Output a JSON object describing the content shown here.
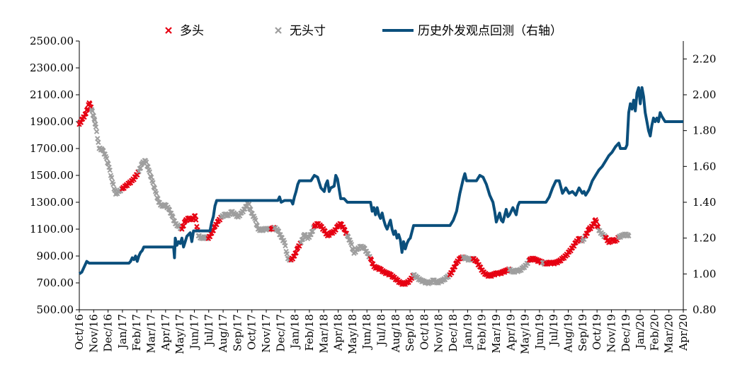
{
  "chart_data": {
    "type": "scatter+line",
    "colors": {
      "duotou": "#e60012",
      "wutoucun": "#9e9e9e",
      "line": "#0b4f7c"
    },
    "legend": [
      {
        "key": "duotou",
        "label": "多头",
        "marker": "x"
      },
      {
        "key": "wutoucun",
        "label": "无头寸",
        "marker": "x"
      },
      {
        "key": "line",
        "label": "历史外发观点回测（右轴）",
        "marker": "line"
      }
    ],
    "y_left": {
      "min": 500,
      "max": 2500,
      "ticks": [
        "500.00",
        "700.00",
        "900.00",
        "1100.00",
        "1300.00",
        "1500.00",
        "1700.00",
        "1900.00",
        "2100.00",
        "2300.00",
        "2500.00"
      ]
    },
    "y_right": {
      "min": 0.8,
      "max": 2.3,
      "ticks": [
        "0.80",
        "1.00",
        "1.20",
        "1.40",
        "1.60",
        "1.80",
        "2.00",
        "2.20"
      ]
    },
    "x_ticks": [
      "Oct/16",
      "Nov/16",
      "Dec/16",
      "Jan/17",
      "Feb/17",
      "Mar/17",
      "Apr/17",
      "May/17",
      "Jun/17",
      "Jul/17",
      "Aug/17",
      "Sep/17",
      "Oct/17",
      "Nov/17",
      "Dec/17",
      "Jan/18",
      "Feb/18",
      "Mar/18",
      "Apr/18",
      "May/18",
      "Jun/18",
      "Jul/18",
      "Aug/18",
      "Sep/18",
      "Oct/18",
      "Nov/18",
      "Dec/18",
      "Jan/19",
      "Feb/19",
      "Mar/19",
      "Apr/19",
      "May/19",
      "Jun/19",
      "Jul/19",
      "Aug/19",
      "Sep/19",
      "Oct/19",
      "Nov/19",
      "Dec/19",
      "Jan/20",
      "Feb/20",
      "Mar/20",
      "Apr/20"
    ],
    "price_series": [
      [
        0,
        1880,
        "d"
      ],
      [
        0.2,
        1920,
        "d"
      ],
      [
        0.4,
        1960,
        "d"
      ],
      [
        0.6,
        2040,
        "d"
      ],
      [
        0.75,
        1990,
        "w"
      ],
      [
        0.9,
        1920,
        "w"
      ],
      [
        1.0,
        1860,
        "w"
      ],
      [
        1.2,
        1700,
        "w"
      ],
      [
        1.4,
        1690,
        "w"
      ],
      [
        1.6,
        1640,
        "w"
      ],
      [
        1.8,
        1560,
        "w"
      ],
      [
        2.0,
        1450,
        "w"
      ],
      [
        2.2,
        1360,
        "w"
      ],
      [
        2.4,
        1380,
        "w"
      ],
      [
        2.6,
        1400,
        "d"
      ],
      [
        2.8,
        1420,
        "d"
      ],
      [
        3.0,
        1440,
        "d"
      ],
      [
        3.2,
        1460,
        "d"
      ],
      [
        3.4,
        1490,
        "d"
      ],
      [
        3.6,
        1530,
        "w"
      ],
      [
        3.8,
        1590,
        "w"
      ],
      [
        4.0,
        1610,
        "w"
      ],
      [
        4.2,
        1540,
        "w"
      ],
      [
        4.4,
        1460,
        "w"
      ],
      [
        4.6,
        1380,
        "w"
      ],
      [
        4.8,
        1300,
        "w"
      ],
      [
        5.0,
        1270,
        "w"
      ],
      [
        5.2,
        1280,
        "w"
      ],
      [
        5.4,
        1250,
        "w"
      ],
      [
        5.6,
        1200,
        "w"
      ],
      [
        5.8,
        1140,
        "w"
      ],
      [
        6.0,
        1120,
        "w"
      ],
      [
        6.2,
        1100,
        "d"
      ],
      [
        6.4,
        1160,
        "d"
      ],
      [
        6.6,
        1180,
        "d"
      ],
      [
        6.8,
        1170,
        "d"
      ],
      [
        7.0,
        1200,
        "d"
      ],
      [
        7.2,
        1050,
        "w"
      ],
      [
        7.4,
        1030,
        "w"
      ],
      [
        7.6,
        1040,
        "w"
      ],
      [
        7.8,
        1030,
        "d"
      ],
      [
        8.0,
        1070,
        "d"
      ],
      [
        8.2,
        1120,
        "d"
      ],
      [
        8.4,
        1160,
        "d"
      ],
      [
        8.6,
        1190,
        "w"
      ],
      [
        8.8,
        1210,
        "w"
      ],
      [
        9.0,
        1200,
        "w"
      ],
      [
        9.2,
        1230,
        "w"
      ],
      [
        9.4,
        1210,
        "w"
      ],
      [
        9.6,
        1190,
        "w"
      ],
      [
        9.8,
        1220,
        "w"
      ],
      [
        10.0,
        1250,
        "w"
      ],
      [
        10.2,
        1300,
        "w"
      ],
      [
        10.4,
        1220,
        "w"
      ],
      [
        10.6,
        1180,
        "w"
      ],
      [
        10.8,
        1100,
        "w"
      ],
      [
        11.0,
        1090,
        "w"
      ],
      [
        11.2,
        1100,
        "w"
      ],
      [
        11.4,
        1100,
        "w"
      ],
      [
        11.6,
        1100,
        "d"
      ],
      [
        11.8,
        1110,
        "w"
      ],
      [
        12.0,
        1090,
        "w"
      ],
      [
        12.2,
        1040,
        "w"
      ],
      [
        12.4,
        1000,
        "w"
      ],
      [
        12.6,
        880,
        "w"
      ],
      [
        12.8,
        870,
        "d"
      ],
      [
        13.0,
        900,
        "d"
      ],
      [
        13.2,
        960,
        "d"
      ],
      [
        13.4,
        1000,
        "w"
      ],
      [
        13.6,
        1060,
        "w"
      ],
      [
        13.8,
        1030,
        "w"
      ],
      [
        14.0,
        1060,
        "w"
      ],
      [
        14.2,
        1120,
        "d"
      ],
      [
        14.4,
        1140,
        "d"
      ],
      [
        14.6,
        1120,
        "d"
      ],
      [
        14.8,
        1090,
        "d"
      ],
      [
        15.0,
        1050,
        "d"
      ],
      [
        15.2,
        1070,
        "d"
      ],
      [
        15.4,
        1080,
        "d"
      ],
      [
        15.6,
        1120,
        "d"
      ],
      [
        15.8,
        1140,
        "d"
      ],
      [
        16.0,
        1100,
        "d"
      ],
      [
        16.2,
        1050,
        "w"
      ],
      [
        16.4,
        1000,
        "w"
      ],
      [
        16.6,
        920,
        "w"
      ],
      [
        16.8,
        950,
        "w"
      ],
      [
        17.0,
        970,
        "w"
      ],
      [
        17.2,
        960,
        "w"
      ],
      [
        17.4,
        920,
        "w"
      ],
      [
        17.6,
        880,
        "d"
      ],
      [
        17.8,
        820,
        "d"
      ],
      [
        18.0,
        810,
        "d"
      ],
      [
        18.2,
        800,
        "d"
      ],
      [
        18.4,
        780,
        "d"
      ],
      [
        18.6,
        770,
        "d"
      ],
      [
        18.8,
        760,
        "d"
      ],
      [
        19.0,
        740,
        "d"
      ],
      [
        19.2,
        720,
        "d"
      ],
      [
        19.4,
        700,
        "d"
      ],
      [
        19.6,
        690,
        "d"
      ],
      [
        19.8,
        700,
        "d"
      ],
      [
        20.0,
        720,
        "d"
      ],
      [
        20.2,
        760,
        "w"
      ],
      [
        20.4,
        740,
        "w"
      ],
      [
        20.6,
        720,
        "w"
      ],
      [
        20.8,
        710,
        "w"
      ],
      [
        21.0,
        700,
        "w"
      ],
      [
        21.2,
        700,
        "w"
      ],
      [
        21.4,
        720,
        "w"
      ],
      [
        21.6,
        700,
        "w"
      ],
      [
        21.8,
        710,
        "w"
      ],
      [
        22.0,
        720,
        "w"
      ],
      [
        22.2,
        740,
        "w"
      ],
      [
        22.4,
        760,
        "d"
      ],
      [
        22.6,
        800,
        "d"
      ],
      [
        22.8,
        850,
        "d"
      ],
      [
        23.0,
        880,
        "d"
      ],
      [
        23.2,
        890,
        "w"
      ],
      [
        23.4,
        880,
        "w"
      ],
      [
        23.6,
        870,
        "w"
      ],
      [
        23.8,
        880,
        "d"
      ],
      [
        24.0,
        860,
        "d"
      ],
      [
        24.2,
        820,
        "d"
      ],
      [
        24.4,
        780,
        "d"
      ],
      [
        24.6,
        760,
        "d"
      ],
      [
        24.8,
        750,
        "d"
      ],
      [
        25.0,
        760,
        "d"
      ],
      [
        25.2,
        770,
        "d"
      ],
      [
        25.4,
        770,
        "d"
      ],
      [
        25.6,
        780,
        "d"
      ],
      [
        25.8,
        790,
        "d"
      ],
      [
        26.0,
        800,
        "w"
      ],
      [
        26.2,
        780,
        "w"
      ],
      [
        26.4,
        790,
        "w"
      ],
      [
        26.6,
        790,
        "w"
      ],
      [
        26.8,
        810,
        "w"
      ],
      [
        27.0,
        830,
        "w"
      ],
      [
        27.2,
        870,
        "d"
      ],
      [
        27.4,
        880,
        "d"
      ],
      [
        27.6,
        870,
        "d"
      ],
      [
        27.8,
        860,
        "d"
      ],
      [
        28.0,
        850,
        "w"
      ],
      [
        28.2,
        840,
        "d"
      ],
      [
        28.4,
        850,
        "d"
      ],
      [
        28.6,
        845,
        "d"
      ],
      [
        28.8,
        850,
        "d"
      ],
      [
        29.0,
        860,
        "d"
      ],
      [
        29.2,
        880,
        "d"
      ],
      [
        29.4,
        900,
        "d"
      ],
      [
        29.6,
        930,
        "d"
      ],
      [
        29.8,
        960,
        "d"
      ],
      [
        30.0,
        1000,
        "d"
      ],
      [
        30.2,
        1030,
        "d"
      ],
      [
        30.4,
        1010,
        "w"
      ],
      [
        30.6,
        1050,
        "d"
      ],
      [
        30.8,
        1100,
        "d"
      ],
      [
        31.0,
        1120,
        "d"
      ],
      [
        31.2,
        1170,
        "d"
      ],
      [
        31.4,
        1090,
        "w"
      ],
      [
        31.6,
        1060,
        "w"
      ],
      [
        31.8,
        1040,
        "d"
      ],
      [
        32.0,
        1000,
        "d"
      ],
      [
        32.2,
        1020,
        "d"
      ],
      [
        32.4,
        1010,
        "d"
      ],
      [
        32.6,
        1040,
        "w"
      ],
      [
        32.8,
        1050,
        "w"
      ],
      [
        33.0,
        1060,
        "w"
      ],
      [
        33.2,
        1050,
        "w"
      ]
    ],
    "line_series": [
      [
        0,
        1.0
      ],
      [
        0.15,
        1.01
      ],
      [
        0.3,
        1.04
      ],
      [
        0.45,
        1.07
      ],
      [
        0.6,
        1.06
      ],
      [
        3.0,
        1.06
      ],
      [
        3.1,
        1.07
      ],
      [
        3.2,
        1.09
      ],
      [
        3.3,
        1.08
      ],
      [
        3.4,
        1.1
      ],
      [
        3.5,
        1.07
      ],
      [
        3.6,
        1.1
      ],
      [
        3.7,
        1.12
      ],
      [
        3.8,
        1.13
      ],
      [
        3.9,
        1.15
      ],
      [
        4.0,
        1.15
      ],
      [
        5.7,
        1.15
      ],
      [
        5.75,
        1.09
      ],
      [
        5.8,
        1.2
      ],
      [
        5.9,
        1.16
      ],
      [
        6.0,
        1.18
      ],
      [
        6.1,
        1.17
      ],
      [
        6.2,
        1.2
      ],
      [
        6.3,
        1.15
      ],
      [
        6.4,
        1.18
      ],
      [
        6.5,
        1.21
      ],
      [
        6.7,
        1.23
      ],
      [
        6.8,
        1.18
      ],
      [
        6.9,
        1.24
      ],
      [
        7.9,
        1.24
      ],
      [
        8.0,
        1.29
      ],
      [
        8.1,
        1.32
      ],
      [
        8.2,
        1.38
      ],
      [
        8.3,
        1.41
      ],
      [
        12.0,
        1.41
      ],
      [
        12.1,
        1.43
      ],
      [
        12.2,
        1.4
      ],
      [
        12.4,
        1.41
      ],
      [
        12.8,
        1.41
      ],
      [
        12.9,
        1.39
      ],
      [
        13.0,
        1.43
      ],
      [
        13.1,
        1.46
      ],
      [
        13.2,
        1.5
      ],
      [
        13.3,
        1.52
      ],
      [
        14.0,
        1.52
      ],
      [
        14.2,
        1.55
      ],
      [
        14.4,
        1.54
      ],
      [
        14.6,
        1.48
      ],
      [
        14.8,
        1.46
      ],
      [
        14.9,
        1.5
      ],
      [
        15.0,
        1.52
      ],
      [
        15.1,
        1.46
      ],
      [
        15.2,
        1.48
      ],
      [
        15.4,
        1.49
      ],
      [
        15.5,
        1.55
      ],
      [
        15.6,
        1.53
      ],
      [
        15.8,
        1.42
      ],
      [
        16.0,
        1.42
      ],
      [
        16.2,
        1.4
      ],
      [
        17.6,
        1.4
      ],
      [
        17.7,
        1.35
      ],
      [
        17.8,
        1.37
      ],
      [
        17.9,
        1.33
      ],
      [
        18.0,
        1.37
      ],
      [
        18.1,
        1.33
      ],
      [
        18.2,
        1.31
      ],
      [
        18.3,
        1.34
      ],
      [
        18.4,
        1.3
      ],
      [
        18.5,
        1.27
      ],
      [
        18.6,
        1.25
      ],
      [
        18.8,
        1.3
      ],
      [
        18.9,
        1.25
      ],
      [
        19.0,
        1.22
      ],
      [
        19.1,
        1.24
      ],
      [
        19.2,
        1.2
      ],
      [
        19.3,
        1.22
      ],
      [
        19.4,
        1.19
      ],
      [
        19.5,
        1.12
      ],
      [
        19.6,
        1.18
      ],
      [
        19.7,
        1.14
      ],
      [
        19.8,
        1.17
      ],
      [
        19.9,
        1.19
      ],
      [
        20.0,
        1.2
      ],
      [
        20.2,
        1.27
      ],
      [
        22.4,
        1.27
      ],
      [
        22.6,
        1.3
      ],
      [
        22.8,
        1.35
      ],
      [
        23.0,
        1.45
      ],
      [
        23.2,
        1.53
      ],
      [
        23.3,
        1.56
      ],
      [
        23.4,
        1.52
      ],
      [
        24.0,
        1.52
      ],
      [
        24.2,
        1.55
      ],
      [
        24.4,
        1.54
      ],
      [
        24.6,
        1.5
      ],
      [
        24.8,
        1.44
      ],
      [
        25.0,
        1.4
      ],
      [
        25.1,
        1.35
      ],
      [
        25.2,
        1.29
      ],
      [
        25.4,
        1.34
      ],
      [
        25.5,
        1.3
      ],
      [
        25.6,
        1.29
      ],
      [
        25.8,
        1.36
      ],
      [
        25.9,
        1.32
      ],
      [
        26.0,
        1.33
      ],
      [
        26.2,
        1.37
      ],
      [
        26.4,
        1.33
      ],
      [
        26.5,
        1.38
      ],
      [
        26.6,
        1.4
      ],
      [
        28.2,
        1.4
      ],
      [
        28.4,
        1.43
      ],
      [
        28.6,
        1.48
      ],
      [
        28.8,
        1.52
      ],
      [
        29.0,
        1.52
      ],
      [
        29.2,
        1.45
      ],
      [
        29.4,
        1.48
      ],
      [
        29.6,
        1.45
      ],
      [
        29.8,
        1.46
      ],
      [
        30.0,
        1.44
      ],
      [
        30.2,
        1.48
      ],
      [
        30.4,
        1.45
      ],
      [
        30.5,
        1.46
      ],
      [
        30.6,
        1.44
      ],
      [
        30.8,
        1.47
      ],
      [
        31.0,
        1.52
      ],
      [
        31.2,
        1.55
      ],
      [
        31.4,
        1.58
      ],
      [
        31.6,
        1.6
      ],
      [
        31.8,
        1.63
      ],
      [
        32.0,
        1.66
      ],
      [
        32.2,
        1.68
      ],
      [
        32.4,
        1.71
      ],
      [
        32.6,
        1.73
      ],
      [
        32.7,
        1.7
      ],
      [
        32.8,
        1.7
      ],
      [
        33.0,
        1.7
      ],
      [
        33.1,
        1.72
      ],
      [
        33.2,
        1.9
      ],
      [
        33.3,
        1.95
      ],
      [
        33.4,
        1.92
      ],
      [
        33.5,
        1.97
      ],
      [
        33.6,
        1.91
      ],
      [
        33.7,
        2.01
      ],
      [
        33.8,
        2.04
      ],
      [
        33.9,
        1.95
      ],
      [
        34.0,
        2.04
      ],
      [
        34.1,
        1.99
      ],
      [
        34.2,
        1.9
      ],
      [
        34.3,
        1.85
      ],
      [
        34.4,
        1.8
      ],
      [
        34.5,
        1.77
      ],
      [
        34.6,
        1.83
      ],
      [
        34.7,
        1.87
      ],
      [
        34.8,
        1.85
      ],
      [
        34.9,
        1.87
      ],
      [
        35.0,
        1.85
      ],
      [
        35.1,
        1.9
      ],
      [
        35.2,
        1.88
      ],
      [
        35.4,
        1.85
      ],
      [
        36.5,
        1.85
      ]
    ]
  }
}
